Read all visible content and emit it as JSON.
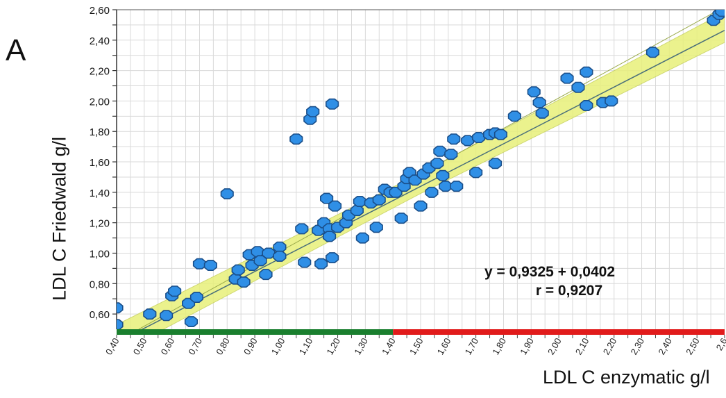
{
  "panel_label": "A",
  "chart_data": {
    "type": "scatter",
    "xlabel": "LDL C enzymatic g/l",
    "ylabel": "LDL C Friedwald g/l",
    "xlim": [
      0.4,
      2.6
    ],
    "ylim": [
      0.5,
      2.6
    ],
    "x_ticks": [
      "0,40",
      "0,50",
      "0,60",
      "0,70",
      "0,80",
      "0,90",
      "1,00",
      "1,10",
      "1,20",
      "1,30",
      "1,40",
      "1,50",
      "1,60",
      "1,70",
      "1,80",
      "1,90",
      "2,00",
      "2,10",
      "2,20",
      "2,30",
      "2,40",
      "2,50",
      "2,6"
    ],
    "y_ticks": [
      "0,60",
      "0,80",
      "1,00",
      "1,20",
      "1,40",
      "1,60",
      "1,80",
      "2,00",
      "2,20",
      "2,40",
      "2,60"
    ],
    "grid": true,
    "annotations": [
      "y = 0,9325 + 0,0402",
      "r = 0,9207"
    ],
    "regression_line": {
      "slope": 0.9325,
      "intercept": 0.0402
    },
    "x_axis_bands": [
      {
        "from": 0.4,
        "to": 1.4,
        "color": "#1a7f2e"
      },
      {
        "from": 1.4,
        "to": 2.6,
        "color": "#e11b1b"
      }
    ],
    "colors": {
      "point_fill": "#2f8fe6",
      "point_edge": "#1a4f8a",
      "band_fill": "#e8f07a",
      "line": "#4a6f7a"
    },
    "points": [
      [
        0.4,
        0.64
      ],
      [
        0.4,
        0.53
      ],
      [
        0.52,
        0.6
      ],
      [
        0.58,
        0.59
      ],
      [
        0.6,
        0.72
      ],
      [
        0.61,
        0.75
      ],
      [
        0.66,
        0.67
      ],
      [
        0.67,
        0.55
      ],
      [
        0.69,
        0.71
      ],
      [
        0.7,
        0.93
      ],
      [
        0.74,
        0.92
      ],
      [
        0.8,
        1.39
      ],
      [
        0.83,
        0.83
      ],
      [
        0.84,
        0.89
      ],
      [
        0.86,
        0.81
      ],
      [
        0.88,
        0.99
      ],
      [
        0.89,
        0.92
      ],
      [
        0.91,
        1.01
      ],
      [
        0.92,
        0.95
      ],
      [
        0.94,
        0.86
      ],
      [
        0.95,
        1.0
      ],
      [
        0.99,
        1.04
      ],
      [
        0.99,
        0.98
      ],
      [
        1.05,
        1.75
      ],
      [
        1.07,
        1.16
      ],
      [
        1.08,
        0.94
      ],
      [
        1.1,
        1.88
      ],
      [
        1.11,
        1.93
      ],
      [
        1.13,
        1.15
      ],
      [
        1.14,
        0.93
      ],
      [
        1.15,
        1.2
      ],
      [
        1.16,
        1.36
      ],
      [
        1.17,
        1.16
      ],
      [
        1.17,
        1.11
      ],
      [
        1.18,
        0.97
      ],
      [
        1.18,
        1.98
      ],
      [
        1.19,
        1.31
      ],
      [
        1.2,
        1.17
      ],
      [
        1.23,
        1.2
      ],
      [
        1.24,
        1.25
      ],
      [
        1.27,
        1.28
      ],
      [
        1.28,
        1.34
      ],
      [
        1.29,
        1.1
      ],
      [
        1.32,
        1.33
      ],
      [
        1.34,
        1.17
      ],
      [
        1.35,
        1.35
      ],
      [
        1.37,
        1.42
      ],
      [
        1.39,
        1.4
      ],
      [
        1.41,
        1.4
      ],
      [
        1.43,
        1.23
      ],
      [
        1.44,
        1.44
      ],
      [
        1.45,
        1.49
      ],
      [
        1.46,
        1.53
      ],
      [
        1.48,
        1.48
      ],
      [
        1.5,
        1.31
      ],
      [
        1.51,
        1.52
      ],
      [
        1.53,
        1.56
      ],
      [
        1.54,
        1.4
      ],
      [
        1.56,
        1.59
      ],
      [
        1.57,
        1.67
      ],
      [
        1.58,
        1.51
      ],
      [
        1.59,
        1.44
      ],
      [
        1.61,
        1.65
      ],
      [
        1.62,
        1.75
      ],
      [
        1.63,
        1.44
      ],
      [
        1.67,
        1.74
      ],
      [
        1.7,
        1.53
      ],
      [
        1.71,
        1.76
      ],
      [
        1.75,
        1.78
      ],
      [
        1.77,
        1.79
      ],
      [
        1.77,
        1.59
      ],
      [
        1.79,
        1.78
      ],
      [
        1.84,
        1.9
      ],
      [
        1.91,
        2.06
      ],
      [
        1.93,
        1.99
      ],
      [
        1.94,
        1.92
      ],
      [
        2.03,
        2.15
      ],
      [
        2.07,
        2.09
      ],
      [
        2.1,
        2.19
      ],
      [
        2.1,
        1.97
      ],
      [
        2.16,
        1.99
      ],
      [
        2.19,
        2.0
      ],
      [
        2.34,
        2.32
      ],
      [
        2.56,
        2.53
      ],
      [
        2.58,
        2.57
      ],
      [
        2.59,
        2.59
      ]
    ]
  }
}
